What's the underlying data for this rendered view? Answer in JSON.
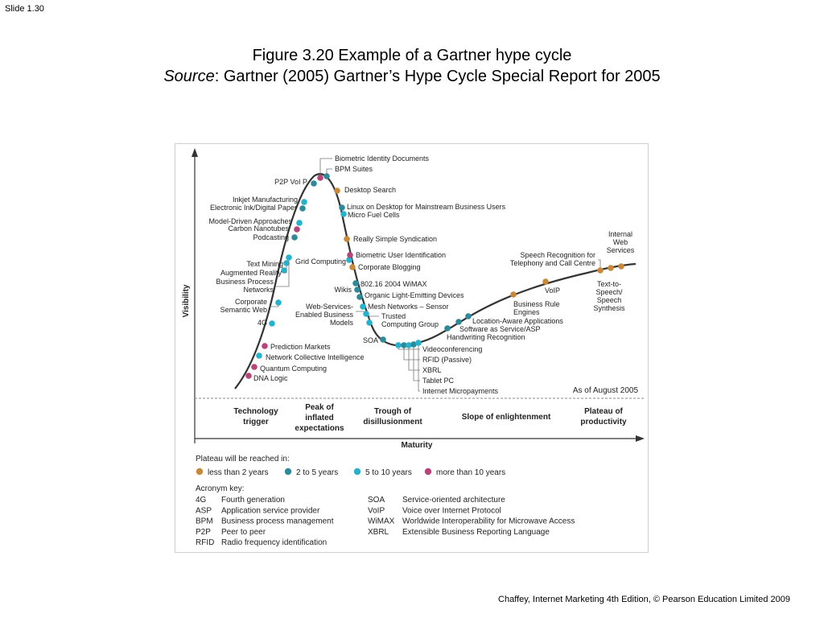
{
  "slide_label": "Slide 1.30",
  "title": {
    "line1": "Figure 3.20  Example of a Gartner hype cycle",
    "source_prefix": "Source",
    "source_rest": ": Gartner (2005) Gartner’s Hype Cycle Special Report for 2005"
  },
  "footer": "Chaffey, Internet Marketing 4th Edition, © Pearson Education Limited 2009",
  "colors": {
    "lt2": "#c8893a",
    "y2to5": "#2e8a99",
    "y5to10": "#26b1cc",
    "gt10": "#b8457a",
    "curve": "#333333"
  },
  "diagram": {
    "y_axis_label": "Visibility",
    "x_axis_label": "Maturity",
    "as_of": "As of August 2005",
    "phases": [
      [
        "Technology",
        "trigger"
      ],
      [
        "Peak of",
        "inflated",
        "expectations"
      ],
      [
        "Trough of",
        "disillusionment"
      ],
      [
        "Slope of enlightenment"
      ],
      [
        "Plateau of",
        "productivity"
      ]
    ],
    "technologies": [
      {
        "lines": [
          "DNA Logic"
        ],
        "plateau": "gt10"
      },
      {
        "lines": [
          "Quantum Computing"
        ],
        "plateau": "gt10"
      },
      {
        "lines": [
          "Network Collective Intelligence"
        ],
        "plateau": "y5to10"
      },
      {
        "lines": [
          "Prediction Markets"
        ],
        "plateau": "gt10"
      },
      {
        "lines": [
          "4G"
        ],
        "plateau": "y5to10"
      },
      {
        "lines": [
          "Corporate",
          "Semantic Web"
        ],
        "plateau": "y5to10"
      },
      {
        "lines": [
          "Text Mining"
        ],
        "plateau": "y5to10"
      },
      {
        "lines": [
          "Augmented Reality"
        ],
        "plateau": "y5to10"
      },
      {
        "lines": [
          "Business Process",
          "Networks"
        ],
        "plateau": "y5to10"
      },
      {
        "lines": [
          "Podcasting"
        ],
        "plateau": "y2to5"
      },
      {
        "lines": [
          "Carbon Nanotubes"
        ],
        "plateau": "gt10"
      },
      {
        "lines": [
          "Model-Driven Approaches"
        ],
        "plateau": "y5to10"
      },
      {
        "lines": [
          "Electronic Ink/Digital Paper"
        ],
        "plateau": "y2to5"
      },
      {
        "lines": [
          "Inkjet Manufacturing"
        ],
        "plateau": "y5to10"
      },
      {
        "lines": [
          "P2P VoI P"
        ],
        "plateau": "y2to5"
      },
      {
        "lines": [
          "Biometric Identity Documents"
        ],
        "plateau": "gt10"
      },
      {
        "lines": [
          "BPM Suites"
        ],
        "plateau": "y2to5"
      },
      {
        "lines": [
          "Desktop Search"
        ],
        "plateau": "lt2"
      },
      {
        "lines": [
          "Linux on Desktop for Mainstream Business Users"
        ],
        "plateau": "y2to5"
      },
      {
        "lines": [
          "Micro Fuel Cells"
        ],
        "plateau": "y5to10"
      },
      {
        "lines": [
          "Really Simple Syndication"
        ],
        "plateau": "lt2"
      },
      {
        "lines": [
          "Grid Computing"
        ],
        "plateau": "y5to10"
      },
      {
        "lines": [
          "Biometric User Identification"
        ],
        "plateau": "gt10"
      },
      {
        "lines": [
          "Corporate Blogging"
        ],
        "plateau": "lt2"
      },
      {
        "lines": [
          "802.16 2004 WiMAX"
        ],
        "plateau": "y2to5"
      },
      {
        "lines": [
          "Wikis"
        ],
        "plateau": "y2to5"
      },
      {
        "lines": [
          "Organic Light-Emitting Devices"
        ],
        "plateau": "y2to5"
      },
      {
        "lines": [
          "Mesh Networks – Sensor"
        ],
        "plateau": "y5to10"
      },
      {
        "lines": [
          "Web-Services-",
          "Enabled Business",
          "Models"
        ],
        "plateau": "y5to10"
      },
      {
        "lines": [
          "Trusted",
          "Computing Group"
        ],
        "plateau": "y5to10"
      },
      {
        "lines": [
          "SOA"
        ],
        "plateau": "y2to5"
      },
      {
        "lines": [
          "Videoconferencing"
        ],
        "plateau": "y5to10"
      },
      {
        "lines": [
          "RFID (Passive)"
        ],
        "plateau": "y2to5"
      },
      {
        "lines": [
          "XBRL"
        ],
        "plateau": "y5to10"
      },
      {
        "lines": [
          "Tablet PC"
        ],
        "plateau": "y2to5"
      },
      {
        "lines": [
          "Internet Micropayments"
        ],
        "plateau": "y5to10"
      },
      {
        "lines": [
          "Handwriting Recognition"
        ],
        "plateau": "y2to5"
      },
      {
        "lines": [
          "Software as Service/ASP"
        ],
        "plateau": "y2to5"
      },
      {
        "lines": [
          "Location-Aware Applications"
        ],
        "plateau": "y2to5"
      },
      {
        "lines": [
          "Business Rule",
          "Engines"
        ],
        "plateau": "lt2"
      },
      {
        "lines": [
          "VoIP"
        ],
        "plateau": "lt2"
      },
      {
        "lines": [
          "Speech Recognition for",
          "Telephony and Call Centre"
        ],
        "plateau": "lt2"
      },
      {
        "lines": [
          "Text-to-",
          "Speech/",
          "Speech",
          "Synthesis"
        ],
        "plateau": "lt2"
      },
      {
        "lines": [
          "Internal",
          "Web",
          "Services"
        ],
        "plateau": "lt2"
      }
    ],
    "legend": {
      "title": "Plateau will be reached in:",
      "items": [
        {
          "key": "lt2",
          "label": "less than 2 years"
        },
        {
          "key": "y2to5",
          "label": "2 to 5 years"
        },
        {
          "key": "y5to10",
          "label": "5 to 10 years"
        },
        {
          "key": "gt10",
          "label": "more than 10 years"
        }
      ]
    },
    "acronyms": {
      "title": "Acronym key:",
      "left": [
        [
          "4G",
          "Fourth generation"
        ],
        [
          "ASP",
          "Application service provider"
        ],
        [
          "BPM",
          "Business process management"
        ],
        [
          "P2P",
          "Peer to peer"
        ],
        [
          "RFID",
          "Radio frequency identification"
        ]
      ],
      "right": [
        [
          "SOA",
          "Service-oriented architecture"
        ],
        [
          "VoIP",
          "Voice over Internet Protocol"
        ],
        [
          "WiMAX",
          "Worldwide Interoperability for Microwave Access"
        ],
        [
          "XBRL",
          "Extensible Business Reporting Language"
        ]
      ]
    }
  }
}
